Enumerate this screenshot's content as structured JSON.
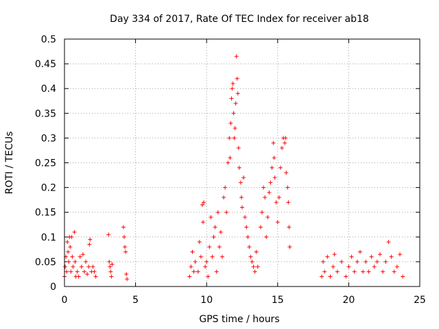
{
  "chart_data": {
    "type": "scatter",
    "title": "Day 334 of 2017, Rate Of TEC Index for receiver ab18",
    "xlabel": "GPS time / hours",
    "ylabel": "ROTI / TECUs",
    "xlim": [
      0,
      25
    ],
    "ylim": [
      0,
      0.5
    ],
    "x_ticks": [
      "0",
      "5",
      "10",
      "15",
      "20",
      "25"
    ],
    "y_ticks": [
      "0",
      "0.05",
      "0.1",
      "0.15",
      "0.2",
      "0.25",
      "0.3",
      "0.35",
      "0.4",
      "0.45",
      "0.5"
    ],
    "x_tick_values": [
      0,
      5,
      10,
      15,
      20,
      25
    ],
    "y_tick_values": [
      0,
      0.05,
      0.1,
      0.15,
      0.2,
      0.25,
      0.3,
      0.35,
      0.4,
      0.45,
      0.5
    ],
    "grid": true,
    "marker": "+",
    "color": "#ff0000",
    "series": [
      {
        "values": [
          [
            0.0,
            0.02
          ],
          [
            0.05,
            0.04
          ],
          [
            0.1,
            0.06
          ],
          [
            0.15,
            0.03
          ],
          [
            0.2,
            0.09
          ],
          [
            0.25,
            0.07
          ],
          [
            0.3,
            0.05
          ],
          [
            0.35,
            0.1
          ],
          [
            0.4,
            0.08
          ],
          [
            0.45,
            0.03
          ],
          [
            0.5,
            0.1
          ],
          [
            0.55,
            0.06
          ],
          [
            0.6,
            0.04
          ],
          [
            0.7,
            0.11
          ],
          [
            0.75,
            0.05
          ],
          [
            0.8,
            0.02
          ],
          [
            0.9,
            0.03
          ],
          [
            1.0,
            0.02
          ],
          [
            1.1,
            0.06
          ],
          [
            1.2,
            0.04
          ],
          [
            1.3,
            0.065
          ],
          [
            1.4,
            0.03
          ],
          [
            1.5,
            0.05
          ],
          [
            1.6,
            0.025
          ],
          [
            1.7,
            0.04
          ],
          [
            1.75,
            0.085
          ],
          [
            1.8,
            0.095
          ],
          [
            1.9,
            0.03
          ],
          [
            2.0,
            0.04
          ],
          [
            2.1,
            0.03
          ],
          [
            2.2,
            0.02
          ],
          [
            3.1,
            0.105
          ],
          [
            3.15,
            0.05
          ],
          [
            3.2,
            0.04
          ],
          [
            3.25,
            0.03
          ],
          [
            3.3,
            0.02
          ],
          [
            3.35,
            0.045
          ],
          [
            4.15,
            0.12
          ],
          [
            4.2,
            0.1
          ],
          [
            4.25,
            0.08
          ],
          [
            4.3,
            0.07
          ],
          [
            4.35,
            0.025
          ],
          [
            4.4,
            0.015
          ],
          [
            8.8,
            0.02
          ],
          [
            8.9,
            0.04
          ],
          [
            9.0,
            0.07
          ],
          [
            9.1,
            0.03
          ],
          [
            9.2,
            0.05
          ],
          [
            9.4,
            0.03
          ],
          [
            9.5,
            0.09
          ],
          [
            9.6,
            0.06
          ],
          [
            9.7,
            0.165
          ],
          [
            9.75,
            0.13
          ],
          [
            9.8,
            0.17
          ],
          [
            9.9,
            0.04
          ],
          [
            10.0,
            0.05
          ],
          [
            10.1,
            0.02
          ],
          [
            10.2,
            0.08
          ],
          [
            10.3,
            0.14
          ],
          [
            10.4,
            0.06
          ],
          [
            10.5,
            0.1
          ],
          [
            10.6,
            0.12
          ],
          [
            10.7,
            0.03
          ],
          [
            10.8,
            0.15
          ],
          [
            10.9,
            0.08
          ],
          [
            11.0,
            0.11
          ],
          [
            11.1,
            0.06
          ],
          [
            11.2,
            0.18
          ],
          [
            11.3,
            0.2
          ],
          [
            11.4,
            0.15
          ],
          [
            11.5,
            0.25
          ],
          [
            11.6,
            0.3
          ],
          [
            11.65,
            0.26
          ],
          [
            11.7,
            0.33
          ],
          [
            11.75,
            0.38
          ],
          [
            11.8,
            0.4
          ],
          [
            11.85,
            0.41
          ],
          [
            11.9,
            0.35
          ],
          [
            11.95,
            0.3
          ],
          [
            12.0,
            0.32
          ],
          [
            12.05,
            0.37
          ],
          [
            12.1,
            0.465
          ],
          [
            12.15,
            0.42
          ],
          [
            12.2,
            0.39
          ],
          [
            12.25,
            0.28
          ],
          [
            12.3,
            0.24
          ],
          [
            12.4,
            0.21
          ],
          [
            12.45,
            0.18
          ],
          [
            12.5,
            0.16
          ],
          [
            12.6,
            0.22
          ],
          [
            12.7,
            0.14
          ],
          [
            12.8,
            0.12
          ],
          [
            12.9,
            0.1
          ],
          [
            13.0,
            0.08
          ],
          [
            13.1,
            0.06
          ],
          [
            13.2,
            0.05
          ],
          [
            13.3,
            0.04
          ],
          [
            13.4,
            0.03
          ],
          [
            13.5,
            0.07
          ],
          [
            13.6,
            0.04
          ],
          [
            13.8,
            0.12
          ],
          [
            13.9,
            0.15
          ],
          [
            14.0,
            0.2
          ],
          [
            14.1,
            0.18
          ],
          [
            14.2,
            0.1
          ],
          [
            14.3,
            0.14
          ],
          [
            14.4,
            0.19
          ],
          [
            14.5,
            0.21
          ],
          [
            14.6,
            0.24
          ],
          [
            14.7,
            0.29
          ],
          [
            14.75,
            0.26
          ],
          [
            14.8,
            0.22
          ],
          [
            14.9,
            0.17
          ],
          [
            15.0,
            0.13
          ],
          [
            15.1,
            0.18
          ],
          [
            15.2,
            0.24
          ],
          [
            15.3,
            0.28
          ],
          [
            15.4,
            0.3
          ],
          [
            15.5,
            0.29
          ],
          [
            15.55,
            0.3
          ],
          [
            15.6,
            0.23
          ],
          [
            15.7,
            0.2
          ],
          [
            15.75,
            0.17
          ],
          [
            15.8,
            0.12
          ],
          [
            15.85,
            0.08
          ],
          [
            18.1,
            0.02
          ],
          [
            18.2,
            0.05
          ],
          [
            18.3,
            0.03
          ],
          [
            18.5,
            0.06
          ],
          [
            18.7,
            0.02
          ],
          [
            18.9,
            0.04
          ],
          [
            19.0,
            0.065
          ],
          [
            19.2,
            0.03
          ],
          [
            19.5,
            0.05
          ],
          [
            19.8,
            0.02
          ],
          [
            20.0,
            0.04
          ],
          [
            20.2,
            0.06
          ],
          [
            20.4,
            0.03
          ],
          [
            20.6,
            0.05
          ],
          [
            20.8,
            0.07
          ],
          [
            21.0,
            0.03
          ],
          [
            21.2,
            0.05
          ],
          [
            21.4,
            0.03
          ],
          [
            21.6,
            0.06
          ],
          [
            21.8,
            0.04
          ],
          [
            22.0,
            0.05
          ],
          [
            22.2,
            0.065
          ],
          [
            22.4,
            0.03
          ],
          [
            22.6,
            0.05
          ],
          [
            22.8,
            0.09
          ],
          [
            23.0,
            0.06
          ],
          [
            23.2,
            0.03
          ],
          [
            23.4,
            0.04
          ],
          [
            23.6,
            0.065
          ],
          [
            23.8,
            0.02
          ]
        ]
      }
    ]
  }
}
